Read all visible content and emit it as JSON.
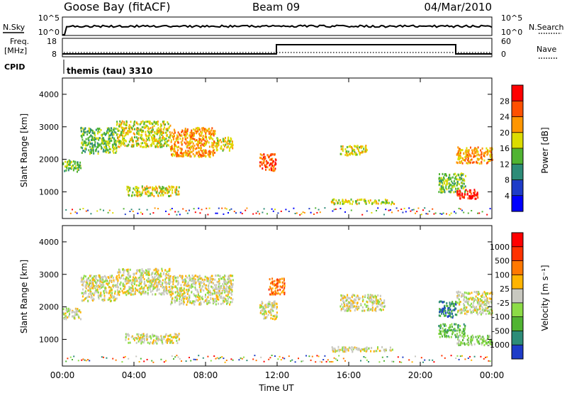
{
  "header": {
    "station": "Goose Bay (fitACF)",
    "beam": "Beam 09",
    "date": "04/Mar/2010"
  },
  "status_panel": {
    "nsky_label": "N.Sky",
    "nsearch_label": "N.Search",
    "nsky_ticks": [
      "10^5",
      "10^0"
    ],
    "nsearch_ticks": [
      "10^5",
      "10^0"
    ],
    "freq_label": "Freq.",
    "freq_unit": "[MHz]",
    "freq_ticks": [
      "18",
      "8"
    ],
    "nave_label": "Nave",
    "nave_ticks": [
      "60",
      "0"
    ],
    "cpid_label": "CPID",
    "cpid_value": "themis (tau) 3310"
  },
  "chart_data": [
    {
      "type": "heatmap",
      "name": "power",
      "ylabel": "Slant Range [km]",
      "ylim": [
        180,
        4500
      ],
      "yticks": [
        "4000",
        "3000",
        "2000",
        "1000"
      ],
      "xlim_hours": [
        0,
        24
      ],
      "colorbar_label": "Power [dB]",
      "colorbar_ticks": [
        "28",
        "24",
        "20",
        "16",
        "12",
        "8",
        "4"
      ],
      "colors": [
        "#0000ff",
        "#1e3cc8",
        "#2d8c78",
        "#50b432",
        "#dcdc00",
        "#ff9600",
        "#ff5000",
        "#ff0000"
      ],
      "regions": [
        {
          "t0": 0.0,
          "t1": 1.0,
          "r0": 1650,
          "r1": 2000,
          "level": 3
        },
        {
          "t0": 1.0,
          "t1": 3.0,
          "r0": 2200,
          "r1": 3000,
          "level": 3
        },
        {
          "t0": 3.0,
          "t1": 6.0,
          "r0": 2400,
          "r1": 3200,
          "level": 4
        },
        {
          "t0": 6.0,
          "t1": 8.5,
          "r0": 2100,
          "r1": 3000,
          "level": 5
        },
        {
          "t0": 8.5,
          "t1": 9.5,
          "r0": 2300,
          "r1": 2700,
          "level": 4
        },
        {
          "t0": 3.5,
          "t1": 6.5,
          "r0": 900,
          "r1": 1200,
          "level": 4
        },
        {
          "t0": 11.0,
          "t1": 11.9,
          "r0": 1650,
          "r1": 2200,
          "level": 6
        },
        {
          "t0": 15.0,
          "t1": 18.5,
          "r0": 650,
          "r1": 800,
          "level": 4
        },
        {
          "t0": 15.5,
          "t1": 17.0,
          "r0": 2150,
          "r1": 2450,
          "level": 4
        },
        {
          "t0": 21.0,
          "t1": 22.5,
          "r0": 1000,
          "r1": 1600,
          "level": 3
        },
        {
          "t0": 22.0,
          "t1": 23.2,
          "r0": 800,
          "r1": 1100,
          "level": 7
        },
        {
          "t0": 22.0,
          "t1": 24.0,
          "r0": 1900,
          "r1": 2400,
          "level": 5
        }
      ]
    },
    {
      "type": "heatmap",
      "name": "velocity",
      "ylabel": "Slant Range [km]",
      "ylim": [
        180,
        4500
      ],
      "yticks": [
        "4000",
        "3000",
        "2000",
        "1000"
      ],
      "xlabel": "Time UT",
      "xticks": [
        "00:00",
        "04:00",
        "08:00",
        "12:00",
        "16:00",
        "20:00",
        "00:00"
      ],
      "xlim_hours": [
        0,
        24
      ],
      "colorbar_label": "Velocity [m s⁻¹]",
      "colorbar_ticks": [
        "1000",
        "500",
        "100",
        "25",
        "-25",
        "-100",
        "-500",
        "-1000"
      ],
      "colors": [
        "#1e3cc8",
        "#2d8c78",
        "#50b432",
        "#8cdc46",
        "#c8c8c0",
        "#ffb400",
        "#ff7800",
        "#ff3200",
        "#ff0000"
      ],
      "regions": [
        {
          "t0": 0.0,
          "t1": 1.0,
          "r0": 1650,
          "r1": 2000,
          "level": 4
        },
        {
          "t0": 1.0,
          "t1": 3.0,
          "r0": 2200,
          "r1": 3000,
          "level": 4
        },
        {
          "t0": 3.0,
          "t1": 6.0,
          "r0": 2400,
          "r1": 3200,
          "level": 4
        },
        {
          "t0": 6.0,
          "t1": 9.5,
          "r0": 2100,
          "r1": 3000,
          "level": 4
        },
        {
          "t0": 3.5,
          "t1": 6.5,
          "r0": 900,
          "r1": 1200,
          "level": 4
        },
        {
          "t0": 11.0,
          "t1": 12.0,
          "r0": 1650,
          "r1": 2200,
          "level": 4
        },
        {
          "t0": 11.5,
          "t1": 12.4,
          "r0": 2400,
          "r1": 2900,
          "level": 6
        },
        {
          "t0": 15.0,
          "t1": 18.5,
          "r0": 650,
          "r1": 800,
          "level": 4
        },
        {
          "t0": 15.5,
          "t1": 18.0,
          "r0": 1900,
          "r1": 2400,
          "level": 4
        },
        {
          "t0": 21.0,
          "t1": 22.0,
          "r0": 1700,
          "r1": 2200,
          "level": 1
        },
        {
          "t0": 21.0,
          "t1": 22.5,
          "r0": 1100,
          "r1": 1500,
          "level": 2
        },
        {
          "t0": 22.0,
          "t1": 24.0,
          "r0": 850,
          "r1": 1150,
          "level": 3
        },
        {
          "t0": 22.0,
          "t1": 24.0,
          "r0": 1800,
          "r1": 2500,
          "level": 4
        }
      ]
    }
  ]
}
